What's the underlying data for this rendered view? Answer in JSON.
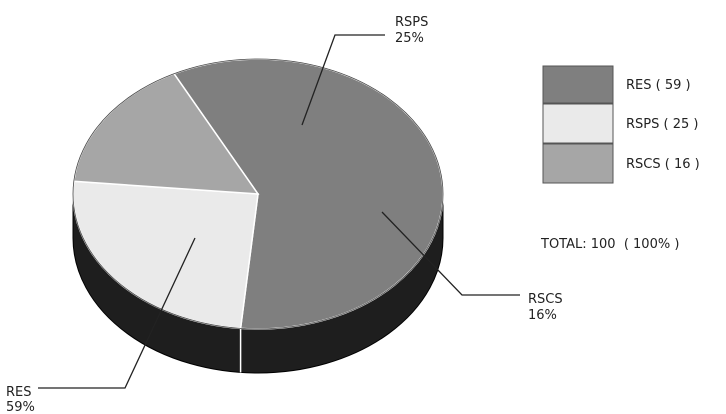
{
  "chart_data": {
    "type": "pie",
    "style": "3d",
    "categories": [
      "RES",
      "RSPS",
      "RSCS"
    ],
    "values": [
      59,
      25,
      16
    ],
    "percent_labels": [
      "59%",
      "25%",
      "16%"
    ],
    "legend_labels": [
      "RES ( 59 )",
      "RSPS ( 25 )",
      "RSCS ( 16 )"
    ],
    "colors": [
      "#7f7f7f",
      "#eaeaea",
      "#a6a6a6"
    ],
    "total_label": "TOTAL: 100  ( 100% )",
    "legend_position": "right",
    "title": ""
  }
}
